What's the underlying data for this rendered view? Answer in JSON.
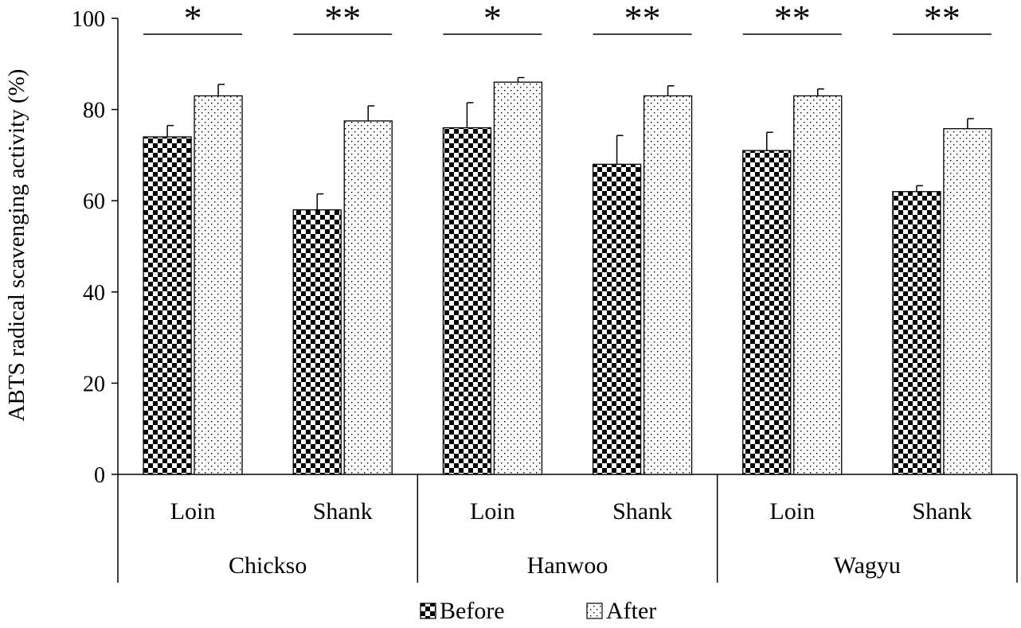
{
  "chart_data": {
    "type": "bar",
    "title": "",
    "ylabel": "ABTS radical scavenging activity (%)",
    "xlabel": "",
    "ylim": [
      0,
      100
    ],
    "yticks": [
      0,
      20,
      40,
      60,
      80,
      100
    ],
    "grid": false,
    "legend_position": "bottom",
    "groups": [
      {
        "label": "Chickso",
        "categories": [
          "Loin",
          "Shank"
        ]
      },
      {
        "label": "Hanwoo",
        "categories": [
          "Loin",
          "Shank"
        ]
      },
      {
        "label": "Wagyu",
        "categories": [
          "Loin",
          "Shank"
        ]
      }
    ],
    "categories": [
      "Loin",
      "Shank",
      "Loin",
      "Shank",
      "Loin",
      "Shank"
    ],
    "series": [
      {
        "name": "Before",
        "pattern": "checker",
        "values": [
          74,
          58,
          76,
          68,
          71,
          62
        ],
        "errors": [
          2.5,
          3.5,
          5.5,
          6.3,
          4.0,
          1.3
        ]
      },
      {
        "name": "After",
        "pattern": "dots",
        "values": [
          83,
          77.5,
          86,
          83,
          83,
          75.8
        ],
        "errors": [
          2.5,
          3.3,
          1.0,
          2.2,
          1.5,
          2.2
        ]
      }
    ],
    "significance": [
      "*",
      "**",
      "*",
      "**",
      "**",
      "**"
    ]
  },
  "colors": {
    "bar_fill": "#ffffff",
    "pattern": "#000000",
    "axis": "#000000"
  }
}
